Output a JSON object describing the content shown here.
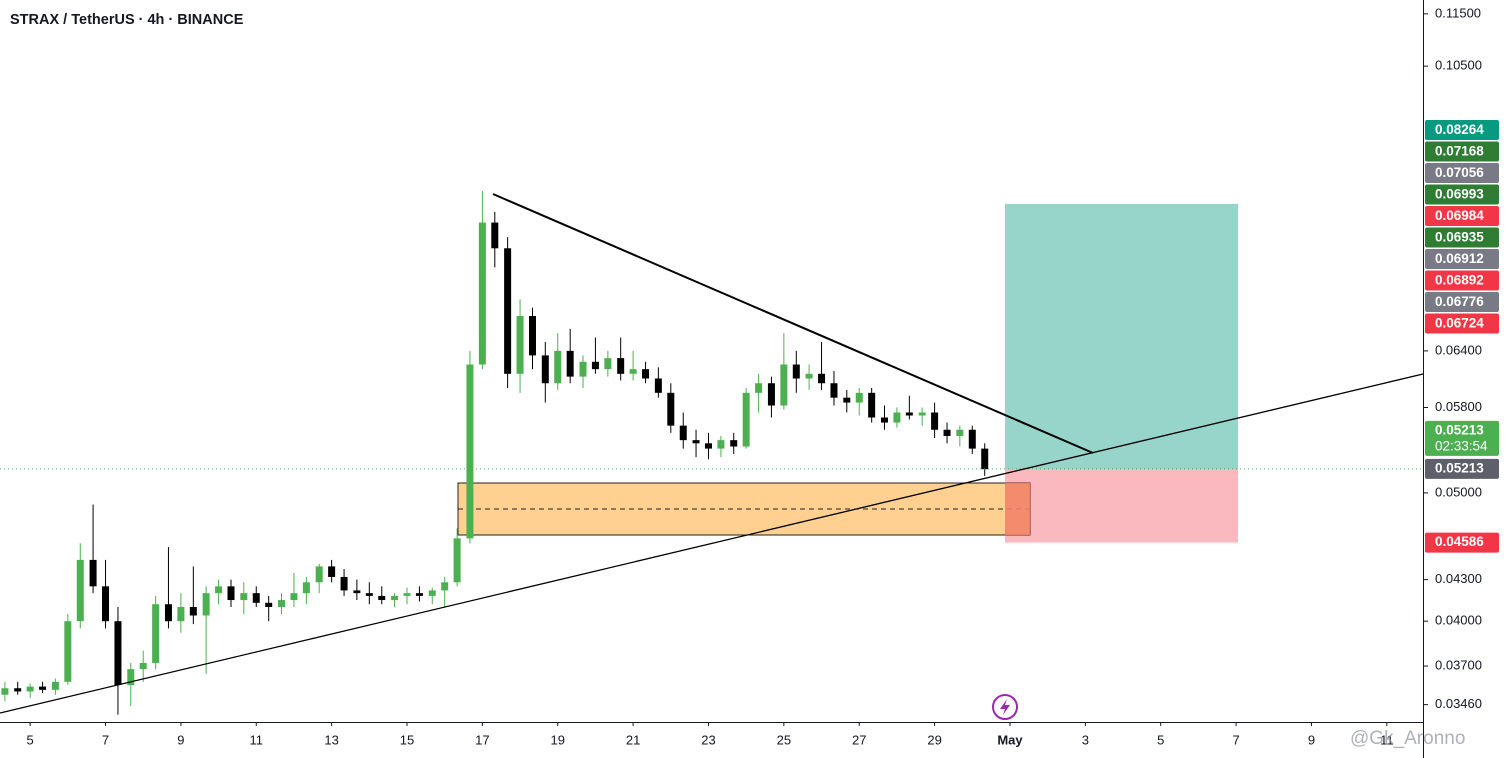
{
  "chart_data": {
    "type": "candlestick",
    "title": "STRAX / TetherUS · 4h · BINANCE",
    "log": true,
    "ylim": [
      0.03357,
      0.1178
    ],
    "xlim": [
      4.2,
      41.96
    ],
    "yticks": [
      {
        "value": 0.115,
        "label": "0.11500"
      },
      {
        "value": 0.105,
        "label": "0.10500"
      },
      {
        "value": 0.064,
        "label": "0.06400"
      },
      {
        "value": 0.058,
        "label": "0.05800"
      },
      {
        "value": 0.05,
        "label": "0.05000"
      },
      {
        "value": 0.043,
        "label": "0.04300"
      },
      {
        "value": 0.04,
        "label": "0.04000"
      },
      {
        "value": 0.037,
        "label": "0.03700"
      },
      {
        "value": 0.0346,
        "label": "0.03460"
      }
    ],
    "xticks": [
      5,
      7,
      9,
      11,
      13,
      15,
      17,
      19,
      21,
      23,
      25,
      27,
      29,
      {
        "value": 31,
        "label": "May"
      },
      {
        "value": 33,
        "label": "3"
      },
      {
        "value": 35,
        "label": "5"
      },
      {
        "value": 37,
        "label": "7"
      },
      {
        "value": 39,
        "label": "9"
      },
      {
        "value": 41,
        "label": "11"
      }
    ],
    "up_color": "#4caf50",
    "down_color": "#000000",
    "x": [
      4.33,
      4.67,
      5,
      5.33,
      5.67,
      6,
      6.33,
      6.67,
      7,
      7.33,
      7.67,
      8,
      8.33,
      8.67,
      9,
      9.33,
      9.67,
      10,
      10.33,
      10.67,
      11,
      11.33,
      11.67,
      12,
      12.33,
      12.67,
      13,
      13.33,
      13.67,
      14,
      14.33,
      14.67,
      15,
      15.33,
      15.67,
      16,
      16.33,
      16.67,
      17,
      17.33,
      17.67,
      18,
      18.33,
      18.67,
      19,
      19.33,
      19.67,
      20,
      20.33,
      20.67,
      21,
      21.33,
      21.67,
      22,
      22.33,
      22.67,
      23,
      23.33,
      23.67,
      24,
      24.33,
      24.67,
      25,
      25.33,
      25.67,
      26,
      26.33,
      26.67,
      27,
      27.33,
      27.67,
      28,
      28.33,
      28.67,
      29,
      29.33,
      29.67,
      30,
      30.33
    ],
    "open": [
      0.0352,
      0.0356,
      0.0354,
      0.0357,
      0.0355,
      0.036,
      0.04,
      0.0445,
      0.0425,
      0.04,
      0.0358,
      0.0368,
      0.0372,
      0.0412,
      0.04,
      0.041,
      0.0404,
      0.042,
      0.0425,
      0.0415,
      0.042,
      0.0413,
      0.041,
      0.0415,
      0.042,
      0.0428,
      0.044,
      0.0432,
      0.0422,
      0.042,
      0.0418,
      0.0415,
      0.0418,
      0.042,
      0.0418,
      0.0422,
      0.0428,
      0.0462,
      0.0625,
      0.08,
      0.0765,
      0.0615,
      0.068,
      0.0635,
      0.0605,
      0.064,
      0.0612,
      0.0628,
      0.062,
      0.0632,
      0.0615,
      0.062,
      0.061,
      0.0595,
      0.0562,
      0.0548,
      0.0545,
      0.054,
      0.0548,
      0.0542,
      0.0595,
      0.0605,
      0.0582,
      0.0625,
      0.061,
      0.0615,
      0.0605,
      0.059,
      0.0585,
      0.0595,
      0.057,
      0.0565,
      0.0575,
      0.0572,
      0.0575,
      0.0558,
      0.0552,
      0.0558,
      0.054
    ],
    "high": [
      0.036,
      0.036,
      0.0359,
      0.036,
      0.0362,
      0.0405,
      0.0458,
      0.049,
      0.0445,
      0.041,
      0.0372,
      0.038,
      0.0418,
      0.0455,
      0.042,
      0.044,
      0.0425,
      0.043,
      0.043,
      0.0428,
      0.0425,
      0.0418,
      0.042,
      0.0435,
      0.0432,
      0.0442,
      0.0445,
      0.0438,
      0.043,
      0.0428,
      0.0425,
      0.042,
      0.0424,
      0.0425,
      0.0424,
      0.0432,
      0.047,
      0.064,
      0.0845,
      0.0815,
      0.078,
      0.07,
      0.069,
      0.065,
      0.066,
      0.0665,
      0.0635,
      0.0655,
      0.064,
      0.0655,
      0.064,
      0.0628,
      0.0622,
      0.0605,
      0.0575,
      0.0558,
      0.0555,
      0.0552,
      0.0555,
      0.06,
      0.0615,
      0.0612,
      0.066,
      0.064,
      0.0625,
      0.065,
      0.0618,
      0.0598,
      0.06,
      0.06,
      0.0582,
      0.058,
      0.0592,
      0.058,
      0.0585,
      0.0565,
      0.0562,
      0.0562,
      0.0545
    ],
    "low": [
      0.0348,
      0.0352,
      0.035,
      0.0353,
      0.0352,
      0.0358,
      0.0395,
      0.042,
      0.0395,
      0.034,
      0.0345,
      0.036,
      0.0368,
      0.0395,
      0.0392,
      0.0398,
      0.0365,
      0.0412,
      0.041,
      0.0405,
      0.041,
      0.04,
      0.0405,
      0.041,
      0.0412,
      0.042,
      0.0428,
      0.0418,
      0.0415,
      0.0412,
      0.0412,
      0.041,
      0.0412,
      0.0414,
      0.0412,
      0.041,
      0.0425,
      0.0458,
      0.062,
      0.074,
      0.06,
      0.0595,
      0.062,
      0.0585,
      0.0598,
      0.0605,
      0.06,
      0.0615,
      0.0612,
      0.0608,
      0.0608,
      0.0605,
      0.059,
      0.0555,
      0.054,
      0.0532,
      0.053,
      0.0532,
      0.0535,
      0.054,
      0.0575,
      0.057,
      0.0578,
      0.0595,
      0.0598,
      0.0598,
      0.0582,
      0.0575,
      0.0572,
      0.0565,
      0.0558,
      0.056,
      0.0568,
      0.0562,
      0.055,
      0.0545,
      0.0542,
      0.0535,
      0.0515
    ],
    "close": [
      0.0356,
      0.0354,
      0.0357,
      0.0355,
      0.036,
      0.04,
      0.0445,
      0.0425,
      0.04,
      0.0358,
      0.0368,
      0.0372,
      0.0412,
      0.04,
      0.041,
      0.0404,
      0.042,
      0.0425,
      0.0415,
      0.042,
      0.0413,
      0.041,
      0.0415,
      0.042,
      0.0428,
      0.044,
      0.0432,
      0.0422,
      0.042,
      0.0418,
      0.0415,
      0.0418,
      0.042,
      0.0418,
      0.0422,
      0.0428,
      0.0462,
      0.0625,
      0.08,
      0.0765,
      0.0615,
      0.068,
      0.0635,
      0.0605,
      0.064,
      0.0612,
      0.0628,
      0.062,
      0.0632,
      0.0615,
      0.062,
      0.061,
      0.0595,
      0.0562,
      0.0548,
      0.0545,
      0.054,
      0.0548,
      0.0542,
      0.0595,
      0.0605,
      0.0582,
      0.0625,
      0.061,
      0.0615,
      0.0605,
      0.059,
      0.0585,
      0.0595,
      0.057,
      0.0565,
      0.0575,
      0.0572,
      0.0575,
      0.0558,
      0.0552,
      0.0558,
      0.054,
      0.0521
    ],
    "price_labels": [
      {
        "value": 0.08264,
        "color": "#089981"
      },
      {
        "value": 0.07168,
        "color": "#2e7d32"
      },
      {
        "value": 0.07056,
        "color": "#787b86"
      },
      {
        "value": 0.06993,
        "color": "#2e7d32"
      },
      {
        "value": 0.06984,
        "color": "#f23645"
      },
      {
        "value": 0.06935,
        "color": "#2e7d32"
      },
      {
        "value": 0.06912,
        "color": "#787b86"
      },
      {
        "value": 0.06892,
        "color": "#f23645"
      },
      {
        "value": 0.06776,
        "color": "#787b86"
      },
      {
        "value": 0.06724,
        "color": "#f23645"
      }
    ],
    "last_price": {
      "value": 0.05213,
      "countdown": "02:33:54",
      "color": "#4caf50"
    },
    "entry": {
      "value": 0.05213,
      "color": "#5d606b"
    },
    "stop": {
      "value": 0.04586,
      "color": "#f23645"
    },
    "watermark": "@Gk_Aronno"
  }
}
